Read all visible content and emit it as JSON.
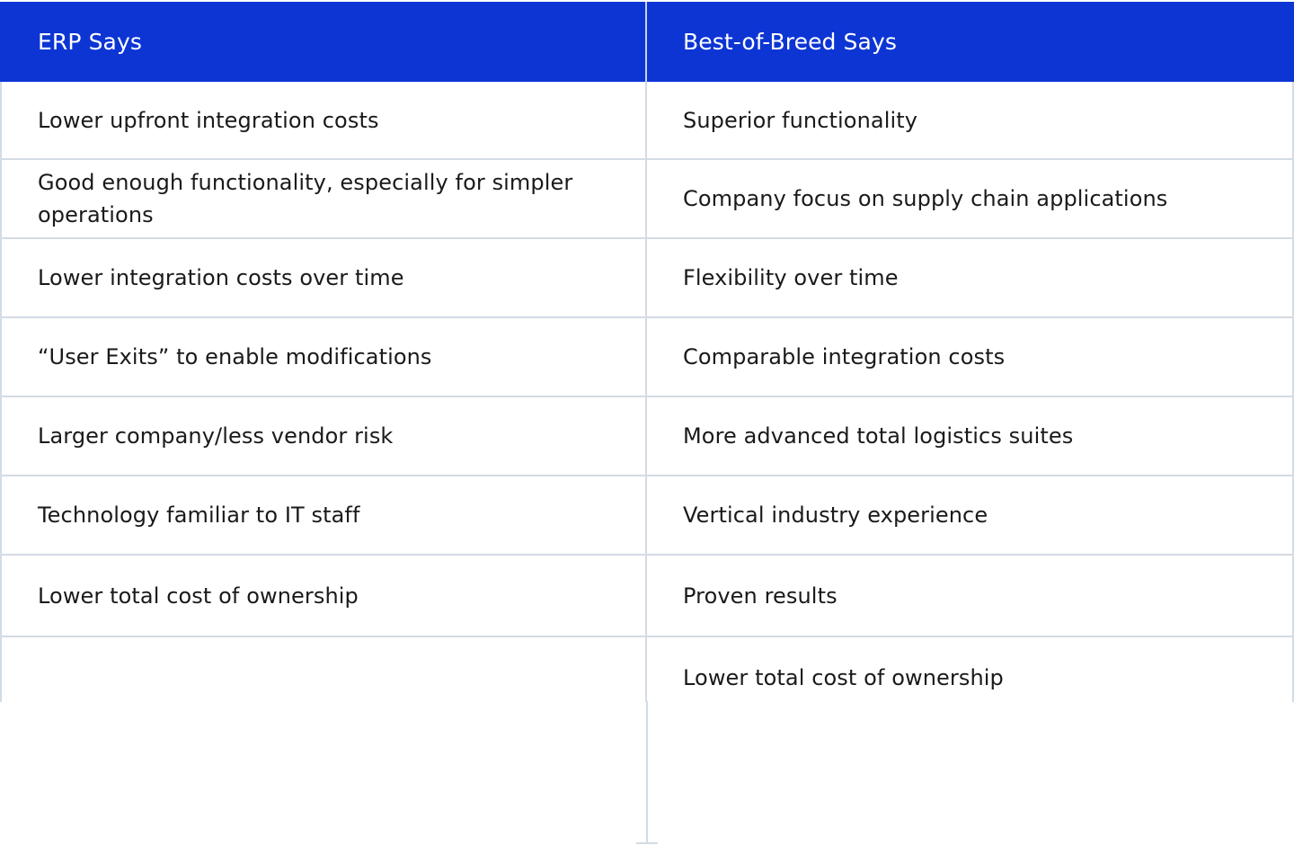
{
  "table": {
    "headers": {
      "left": "ERP Says",
      "right": "Best-of-Breed Says"
    },
    "rows": [
      {
        "left": "Lower upfront integration costs",
        "right": "Superior functionality"
      },
      {
        "left": "Good enough functionality, especially for simpler operations",
        "right": "Company focus on supply chain applications"
      },
      {
        "left": "Lower integration costs over time",
        "right": "Flexibility over time"
      },
      {
        "left": "“User Exits” to enable modifications",
        "right": "Comparable integration costs"
      },
      {
        "left": "Larger company/less vendor risk",
        "right": "More advanced total logistics suites"
      },
      {
        "left": "Technology familiar to IT staff",
        "right": "Vertical industry experience"
      },
      {
        "left": "Lower total cost of ownership",
        "right": "Proven results"
      },
      {
        "left": "",
        "right": "Lower total cost of ownership"
      }
    ]
  },
  "colors": {
    "header_background": "#0d35d4",
    "header_text": "#ffffff",
    "grid_line": "#d3dbe4",
    "body_text": "#1a1a1a"
  }
}
